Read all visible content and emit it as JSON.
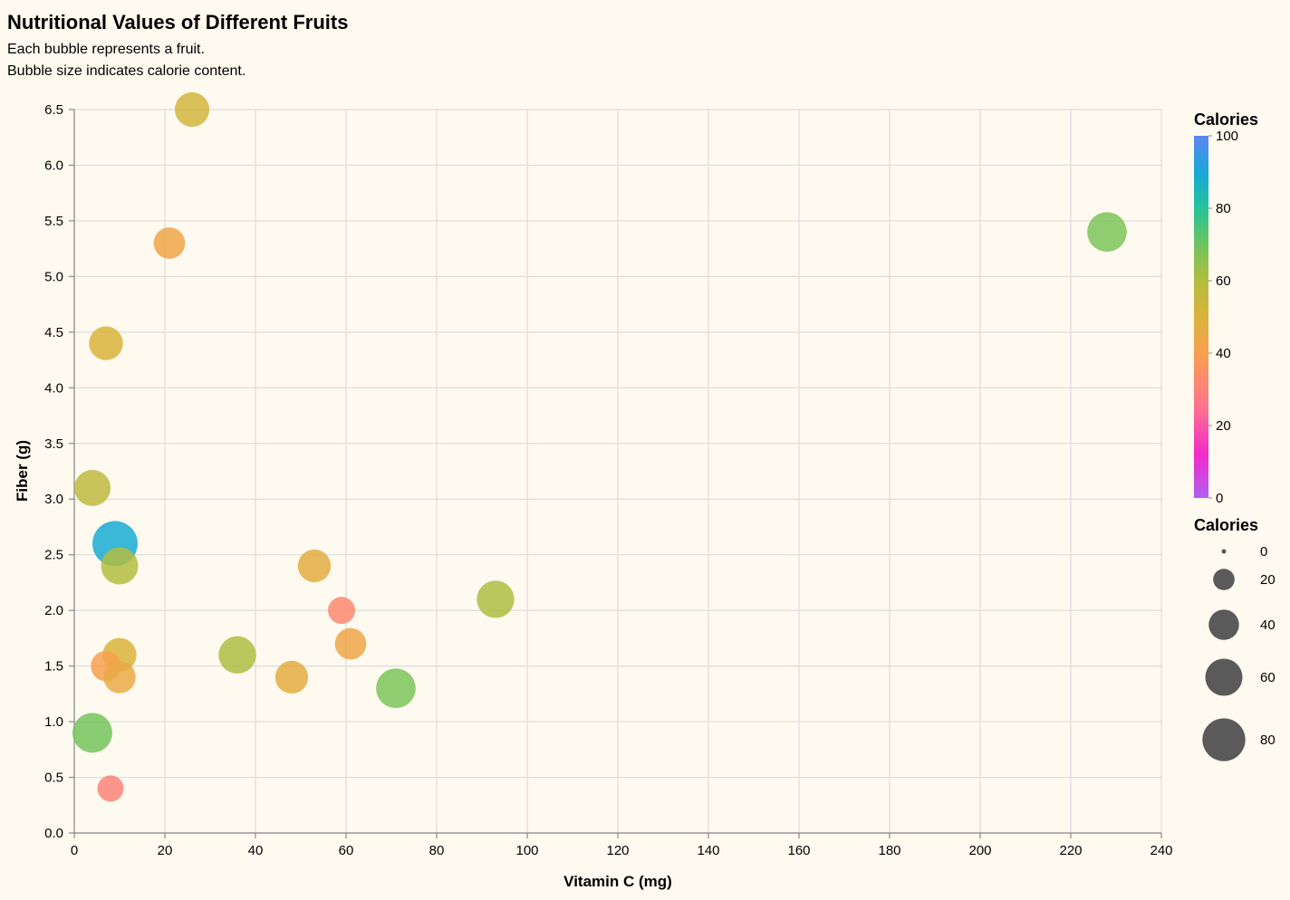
{
  "chart_data": {
    "type": "scatter",
    "title": "Nutritional Values of Different Fruits",
    "subtitle": [
      "Each bubble represents a fruit.",
      "Bubble size indicates calorie content."
    ],
    "xlabel": "Vitamin C (mg)",
    "ylabel": "Fiber (g)",
    "xlim": [
      0,
      240
    ],
    "ylim": [
      0,
      6.5
    ],
    "x_ticks": [
      0,
      20,
      40,
      60,
      80,
      100,
      120,
      140,
      160,
      180,
      200,
      220,
      240
    ],
    "y_ticks": [
      0.0,
      0.5,
      1.0,
      1.5,
      2.0,
      2.5,
      3.0,
      3.5,
      4.0,
      4.5,
      5.0,
      5.5,
      6.0,
      6.5
    ],
    "grid": true,
    "size_field": "Calories",
    "color_field": "Calories",
    "points": [
      {
        "x": 26,
        "y": 6.5,
        "calories": 52
      },
      {
        "x": 21,
        "y": 5.3,
        "calories": 43
      },
      {
        "x": 7,
        "y": 4.4,
        "calories": 50
      },
      {
        "x": 4,
        "y": 3.1,
        "calories": 57
      },
      {
        "x": 9,
        "y": 2.6,
        "calories": 89
      },
      {
        "x": 10,
        "y": 2.4,
        "calories": 60
      },
      {
        "x": 10,
        "y": 1.6,
        "calories": 50
      },
      {
        "x": 7,
        "y": 1.5,
        "calories": 40
      },
      {
        "x": 10,
        "y": 1.4,
        "calories": 45
      },
      {
        "x": 4,
        "y": 0.9,
        "calories": 69
      },
      {
        "x": 8,
        "y": 0.4,
        "calories": 30
      },
      {
        "x": 36,
        "y": 1.6,
        "calories": 61
      },
      {
        "x": 48,
        "y": 1.4,
        "calories": 47
      },
      {
        "x": 53,
        "y": 2.4,
        "calories": 47
      },
      {
        "x": 59,
        "y": 2.0,
        "calories": 32
      },
      {
        "x": 61,
        "y": 1.7,
        "calories": 43
      },
      {
        "x": 71,
        "y": 1.3,
        "calories": 68
      },
      {
        "x": 93,
        "y": 2.1,
        "calories": 61
      },
      {
        "x": 228,
        "y": 5.4,
        "calories": 68
      }
    ],
    "color_legend": {
      "title": "Calories",
      "domain": [
        0,
        100
      ],
      "ticks": [
        0,
        20,
        40,
        60,
        80,
        100
      ],
      "stops": [
        {
          "value": 0,
          "color": "#b05fef"
        },
        {
          "value": 12,
          "color": "#f12bcb"
        },
        {
          "value": 25,
          "color": "#fe738e"
        },
        {
          "value": 40,
          "color": "#f8a04f"
        },
        {
          "value": 50,
          "color": "#dab33c"
        },
        {
          "value": 60,
          "color": "#b2bd40"
        },
        {
          "value": 70,
          "color": "#6ec45f"
        },
        {
          "value": 80,
          "color": "#25c39a"
        },
        {
          "value": 90,
          "color": "#18a7da"
        },
        {
          "value": 100,
          "color": "#5d86f0"
        }
      ]
    },
    "size_legend": {
      "title": "Calories",
      "values": [
        0,
        20,
        40,
        60,
        80
      ]
    },
    "mark_color": "#5a5a5a",
    "background": "#fffaf0"
  }
}
